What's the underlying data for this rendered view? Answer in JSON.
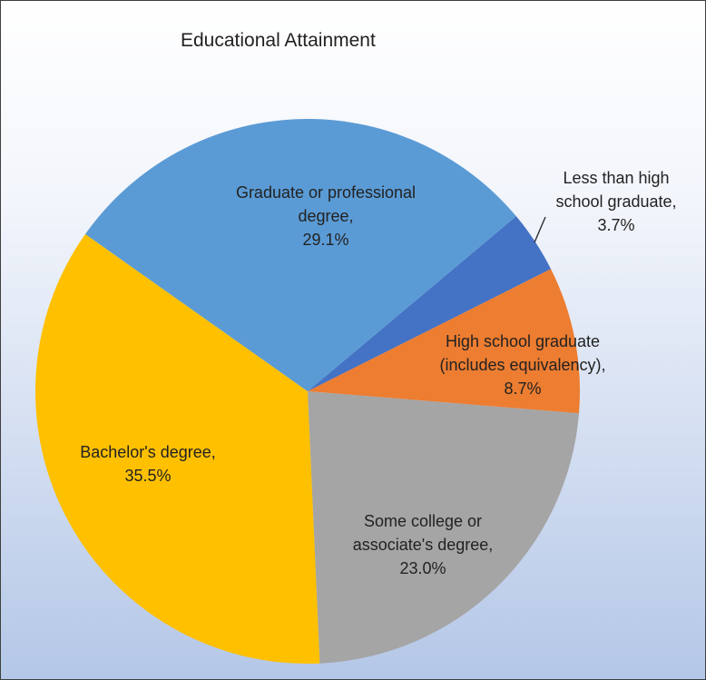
{
  "chart_data": {
    "type": "pie",
    "title": "Educational Attainment",
    "categories": [
      "Less than high school graduate,",
      "High school graduate (includes equivalency),",
      "Some college or associate's degree,",
      "Bachelor's degree,",
      "Graduate or professional degree,"
    ],
    "values": [
      3.7,
      8.7,
      23.0,
      35.5,
      29.1
    ],
    "value_labels": [
      "3.7%",
      "8.7%",
      "23.0%",
      "35.5%",
      "29.1%"
    ],
    "colors": [
      "#4472c4",
      "#ed7d31",
      "#a5a5a5",
      "#ffc000",
      "#5b9bd5"
    ]
  }
}
